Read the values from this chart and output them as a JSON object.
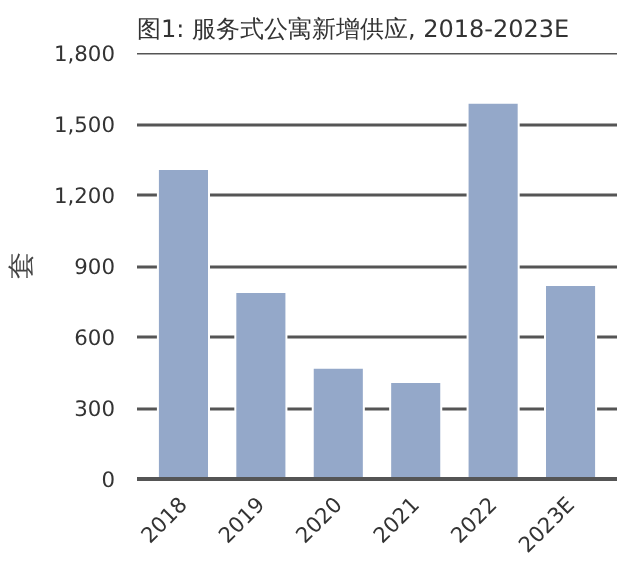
{
  "chart_data": {
    "type": "bar",
    "title": "图1: 服务式公寓新增供应, 2018-2023E",
    "ylabel": "套",
    "categories": [
      "2018",
      "2019",
      "2020",
      "2021",
      "2022",
      "2023E"
    ],
    "values": [
      1310,
      790,
      470,
      410,
      1590,
      820
    ],
    "color": "#94a8c9",
    "ylim": [
      0,
      1800
    ],
    "yticks": [
      0,
      {
        "value": 300,
        "label": "300"
      },
      {
        "value": 600,
        "label": "600"
      },
      {
        "value": 900,
        "label": "900"
      },
      {
        "value": 1200,
        "label": "1,200"
      },
      {
        "value": 1500,
        "label": "1,500"
      },
      {
        "value": 1800,
        "label": "1,800"
      }
    ],
    "grid": "y"
  }
}
